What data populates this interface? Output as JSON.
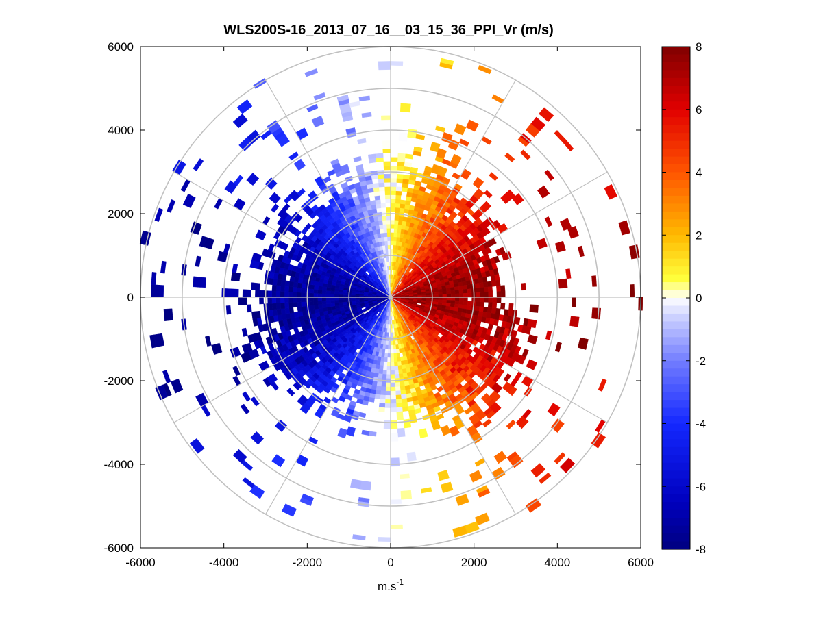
{
  "chart_data": {
    "type": "heatmap",
    "subtype": "polar-ppi-scan",
    "title": "WLS200S-16_2013_07_16__03_15_36_PPI_Vr (m/s)",
    "xlabel": "m.s",
    "xlabel_superscript": "-1",
    "ylabel": "",
    "xlim": [
      -6000,
      6000
    ],
    "ylim": [
      -6000,
      6000
    ],
    "x_ticks": [
      -6000,
      -4000,
      -2000,
      0,
      2000,
      4000,
      6000
    ],
    "y_ticks": [
      6000,
      4000,
      2000,
      0,
      -2000,
      -4000,
      -6000
    ],
    "range_rings_m": [
      1000,
      2000,
      3000,
      4000,
      5000,
      6000
    ],
    "spoke_angles_deg": [
      0,
      30,
      60,
      90,
      120,
      150,
      180,
      210,
      240,
      270,
      300,
      330
    ],
    "colorbar": {
      "min": -8,
      "max": 8,
      "ticks": [
        8,
        6,
        4,
        2,
        0,
        -2,
        -4,
        -6,
        -8
      ],
      "colormap": "blue-white-yellow-red"
    },
    "field_model": {
      "description": "Radial wind velocity Vr approx; negative (blue) toward west, positive (red) toward east",
      "amplitude_m_s": 7.5,
      "max_dense_range_m": 3100,
      "max_sparse_range_m": 6000
    }
  },
  "colors": {
    "grid": "#c0c0c0",
    "frame": "#000000",
    "background": "#ffffff"
  }
}
